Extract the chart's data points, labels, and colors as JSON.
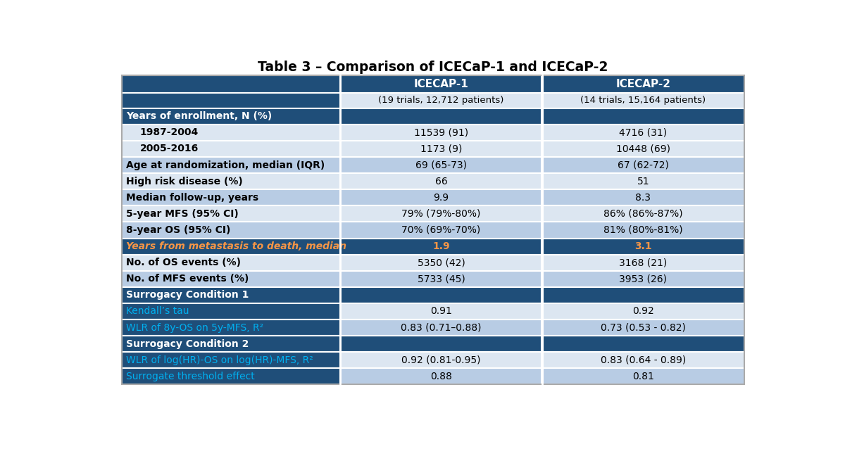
{
  "title": "Table 3 – Comparison of ICECaP-1 and ICECaP-2",
  "col_headers": [
    "ICECAP-1",
    "ICECAP-2"
  ],
  "col_subheaders": [
    "(19 trials, 12,712 patients)",
    "(14 trials, 15,164 patients)"
  ],
  "rows": [
    {
      "label": "Years of enrollment, N (%)",
      "v1": "",
      "v2": "",
      "type": "section_dark"
    },
    {
      "label": "   1987-2004",
      "v1": "11539 (91)",
      "v2": "4716 (31)",
      "type": "data_light"
    },
    {
      "label": "   2005-2016",
      "v1": "1173 (9)",
      "v2": "10448 (69)",
      "type": "data_light"
    },
    {
      "label": "Age at randomization, median (IQR)",
      "v1": "69 (65-73)",
      "v2": "67 (62-72)",
      "type": "data_dark"
    },
    {
      "label": "High risk disease (%)",
      "v1": "66",
      "v2": "51",
      "type": "data_light"
    },
    {
      "label": "Median follow-up, years",
      "v1": "9.9",
      "v2": "8.3",
      "type": "data_dark"
    },
    {
      "label": "5-year MFS (95% CI)",
      "v1": "79% (79%-80%)",
      "v2": "86% (86%-87%)",
      "type": "data_light"
    },
    {
      "label": "8-year OS (95% CI)",
      "v1": "70% (69%-70%)",
      "v2": "81% (80%-81%)",
      "type": "data_dark"
    },
    {
      "label": "Years from metastasis to death, median",
      "v1": "1.9",
      "v2": "3.1",
      "type": "highlight_orange"
    },
    {
      "label": "No. of OS events (%)",
      "v1": "5350 (42)",
      "v2": "3168 (21)",
      "type": "data_light"
    },
    {
      "label": "No. of MFS events (%)",
      "v1": "5733 (45)",
      "v2": "3953 (26)",
      "type": "data_dark"
    },
    {
      "label": "Surrogacy Condition 1",
      "v1": "",
      "v2": "",
      "type": "section_dark"
    },
    {
      "label": "Kendall’s tau",
      "v1": "0.91",
      "v2": "0.92",
      "type": "cyan_light"
    },
    {
      "label": "WLR of 8y-OS on 5y-MFS, R²",
      "v1": "0.83 (0.71–0.88)",
      "v2": "0.73 (0.53 - 0.82)",
      "type": "cyan_dark"
    },
    {
      "label": "Surrogacy Condition 2",
      "v1": "",
      "v2": "",
      "type": "section_dark"
    },
    {
      "label": "WLR of log(HR)-OS on log(HR)-MFS, R²",
      "v1": "0.92 (0.81-0.95)",
      "v2": "0.83 (0.64 - 0.89)",
      "type": "cyan_light"
    },
    {
      "label": "Surrogate threshold effect",
      "v1": "0.88",
      "v2": "0.81",
      "type": "cyan_dark"
    }
  ],
  "colors": {
    "header_bg": "#1f4e79",
    "header_text": "#ffffff",
    "section_dark_bg": "#1f4e79",
    "section_dark_text": "#ffffff",
    "data_light_bg": "#dce6f1",
    "data_dark_bg": "#b8cce4",
    "highlight_orange_bg": "#1f4e79",
    "highlight_orange_text": "#f79646",
    "cyan_text": "#00b0f0",
    "data_text": "#000000",
    "border": "#ffffff",
    "subheader_bg": "#dce6f1"
  },
  "figsize": [
    12.0,
    6.65
  ],
  "dpi": 100
}
